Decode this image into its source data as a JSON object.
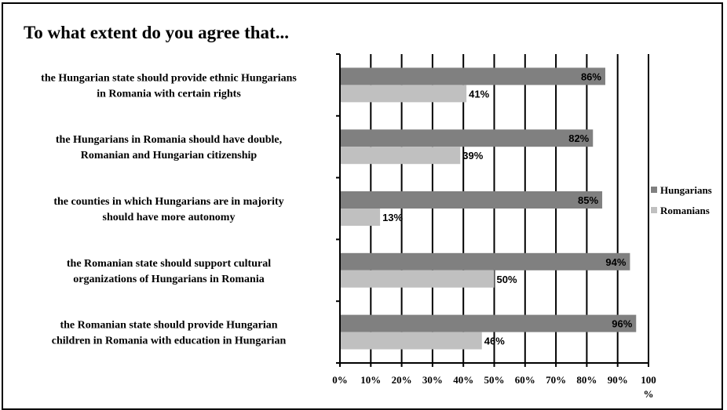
{
  "chart_data": {
    "type": "bar",
    "orientation": "horizontal",
    "title": "To what extent do you agree that...",
    "categories": [
      [
        "the Hungarian state should provide ethnic Hungarians",
        "in Romania with certain rights"
      ],
      [
        "the Hungarians in Romania should have double,",
        "Romanian and Hungarian citizenship"
      ],
      [
        "the counties in which Hungarians are in majority",
        "should have more autonomy"
      ],
      [
        "the Romanian state should support cultural",
        "organizations of Hungarians in Romania"
      ],
      [
        "the Romanian state should provide Hungarian",
        "children in Romania with education in Hungarian"
      ]
    ],
    "series": [
      {
        "name": "Hungarians",
        "color": "#808080",
        "values": [
          86,
          82,
          85,
          94,
          96
        ],
        "labels": [
          "86%",
          "82%",
          "85%",
          "94%",
          "96%"
        ]
      },
      {
        "name": "Romanians",
        "color": "#c0c0c0",
        "values": [
          41,
          39,
          13,
          50,
          46
        ],
        "labels": [
          "41%",
          "39%",
          "13%",
          "50%",
          "46%"
        ]
      }
    ],
    "xlim": [
      0,
      100
    ],
    "xticks": [
      0,
      10,
      20,
      30,
      40,
      50,
      60,
      70,
      80,
      90,
      100
    ],
    "xtick_labels": [
      "0%",
      "10%",
      "20%",
      "30%",
      "40%",
      "50%",
      "60%",
      "70%",
      "80%",
      "90%",
      "100"
    ],
    "xlabel": "%",
    "grid": "vertical",
    "legend_position": "right"
  }
}
